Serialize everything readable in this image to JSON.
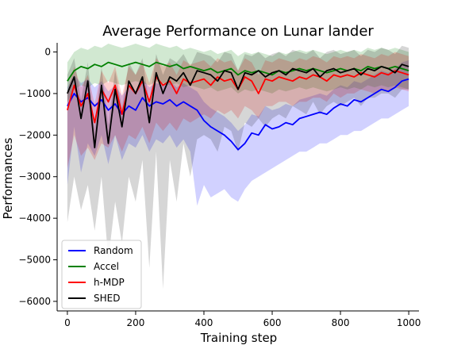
{
  "chart_data": {
    "type": "line",
    "title": "Average Performance on Lunar lander",
    "xlabel": "Training step",
    "ylabel": "Performances",
    "xlim": [
      -30,
      1030
    ],
    "ylim": [
      -6230,
      220
    ],
    "xticks": [
      0,
      200,
      400,
      600,
      800,
      1000
    ],
    "yticks": [
      0,
      -1000,
      -2000,
      -3000,
      -4000,
      -5000,
      -6000
    ],
    "ytick_labels": [
      "0",
      "−1000",
      "−2000",
      "−3000",
      "−4000",
      "−5000",
      "−6000"
    ],
    "grid": false,
    "legend_position": "lower-left",
    "series": [
      {
        "name": "Random",
        "color": "#0000ff",
        "x": [
          0,
          20,
          40,
          60,
          80,
          100,
          120,
          140,
          160,
          180,
          200,
          220,
          240,
          260,
          280,
          300,
          320,
          340,
          360,
          380,
          400,
          420,
          440,
          460,
          480,
          500,
          520,
          540,
          560,
          580,
          600,
          620,
          640,
          660,
          680,
          700,
          720,
          740,
          760,
          780,
          800,
          820,
          840,
          860,
          880,
          900,
          920,
          940,
          960,
          980,
          1000
        ],
        "y": [
          -1300,
          -1000,
          -1200,
          -1100,
          -1300,
          -1150,
          -1400,
          -1250,
          -1500,
          -1300,
          -1400,
          -1100,
          -1300,
          -1200,
          -1250,
          -1150,
          -1300,
          -1200,
          -1300,
          -1400,
          -1650,
          -1800,
          -1900,
          -2000,
          -2150,
          -2350,
          -2200,
          -1950,
          -2000,
          -1750,
          -1850,
          -1800,
          -1700,
          -1750,
          -1600,
          -1550,
          -1500,
          -1450,
          -1500,
          -1350,
          -1250,
          -1300,
          -1150,
          -1200,
          -1100,
          -1000,
          -900,
          -950,
          -850,
          -700,
          -650
        ],
        "band": [
          -3200,
          -1800,
          -2900,
          -2200,
          -2500,
          -2000,
          -2700,
          -2000,
          -2600,
          -2200,
          -2300,
          -2000,
          -2400,
          -2100,
          -2200,
          -2000,
          -2300,
          -2100,
          -2400,
          -3700,
          -3200,
          -3500,
          -3400,
          -3300,
          -3500,
          -3600,
          -3300,
          -3100,
          -3000,
          -2900,
          -2800,
          -2700,
          -2600,
          -2500,
          -2400,
          -2400,
          -2300,
          -2200,
          -2200,
          -2100,
          -2000,
          -2000,
          -1900,
          -1900,
          -1800,
          -1700,
          -1600,
          -1600,
          -1500,
          -1400,
          -1300
        ]
      },
      {
        "name": "Accel",
        "color": "#008000",
        "x": [
          0,
          20,
          40,
          60,
          80,
          100,
          120,
          140,
          160,
          180,
          200,
          220,
          240,
          260,
          280,
          300,
          320,
          340,
          360,
          380,
          400,
          420,
          440,
          460,
          480,
          500,
          520,
          540,
          560,
          580,
          600,
          620,
          640,
          660,
          680,
          700,
          720,
          740,
          760,
          780,
          800,
          820,
          840,
          860,
          880,
          900,
          920,
          940,
          960,
          980,
          1000
        ],
        "y": [
          -700,
          -450,
          -350,
          -400,
          -300,
          -350,
          -250,
          -300,
          -350,
          -300,
          -250,
          -300,
          -350,
          -250,
          -300,
          -350,
          -300,
          -400,
          -350,
          -400,
          -450,
          -400,
          -500,
          -450,
          -400,
          -550,
          -450,
          -500,
          -450,
          -500,
          -550,
          -450,
          -500,
          -450,
          -400,
          -450,
          -400,
          -450,
          -500,
          -450,
          -400,
          -450,
          -400,
          -450,
          -350,
          -400,
          -350,
          -400,
          -350,
          -400,
          -450
        ],
        "band": [
          -1200,
          -900,
          -800,
          -850,
          -750,
          -800,
          -700,
          -750,
          -800,
          -750,
          -700,
          -750,
          -800,
          -700,
          -750,
          -800,
          -750,
          -850,
          -800,
          -850,
          -900,
          -850,
          -950,
          -900,
          -850,
          -1000,
          -900,
          -950,
          -900,
          -950,
          -1000,
          -900,
          -950,
          -900,
          -850,
          -900,
          -850,
          -900,
          -950,
          -900,
          -850,
          -900,
          -850,
          -900,
          -800,
          -850,
          -800,
          -850,
          -800,
          -850,
          -900
        ]
      },
      {
        "name": "h-MDP",
        "color": "#ff0000",
        "x": [
          0,
          20,
          40,
          60,
          80,
          100,
          120,
          140,
          160,
          180,
          200,
          220,
          240,
          260,
          280,
          300,
          320,
          340,
          360,
          380,
          400,
          420,
          440,
          460,
          480,
          500,
          520,
          540,
          560,
          580,
          600,
          620,
          640,
          660,
          680,
          700,
          720,
          740,
          760,
          780,
          800,
          820,
          840,
          860,
          880,
          900,
          920,
          940,
          960,
          980,
          1000
        ],
        "y": [
          -1400,
          -800,
          -1300,
          -1000,
          -1700,
          -900,
          -1200,
          -800,
          -1500,
          -800,
          -1000,
          -700,
          -1200,
          -600,
          -800,
          -700,
          -1000,
          -650,
          -750,
          -700,
          -650,
          -800,
          -600,
          -700,
          -650,
          -900,
          -600,
          -700,
          -1000,
          -650,
          -700,
          -600,
          -650,
          -700,
          -600,
          -650,
          -550,
          -600,
          -700,
          -550,
          -600,
          -550,
          -600,
          -500,
          -550,
          -600,
          -500,
          -550,
          -450,
          -500,
          -550
        ],
        "band": [
          -2800,
          -2000,
          -2500,
          -2300,
          -2600,
          -2200,
          -2300,
          -2000,
          -2400,
          -2000,
          -2100,
          -1800,
          -2200,
          -1700,
          -1900,
          -1700,
          -1900,
          -1600,
          -1700,
          -1600,
          -1500,
          -1600,
          -1400,
          -1500,
          -1400,
          -1600,
          -1300,
          -1400,
          -1600,
          -1300,
          -1300,
          -1200,
          -1200,
          -1300,
          -1200,
          -1200,
          -1100,
          -1100,
          -1200,
          -1000,
          -1100,
          -1000,
          -1000,
          -900,
          -950,
          -1000,
          -900,
          -950,
          -850,
          -900,
          -950
        ]
      },
      {
        "name": "SHED",
        "color": "#000000",
        "x": [
          0,
          20,
          40,
          60,
          80,
          100,
          120,
          140,
          160,
          180,
          200,
          220,
          240,
          260,
          280,
          300,
          320,
          340,
          360,
          380,
          400,
          420,
          440,
          460,
          480,
          500,
          520,
          540,
          560,
          580,
          600,
          620,
          640,
          660,
          680,
          700,
          720,
          740,
          760,
          780,
          800,
          820,
          840,
          860,
          880,
          900,
          920,
          940,
          960,
          980,
          1000
        ],
        "y": [
          -1000,
          -600,
          -1600,
          -700,
          -2300,
          -800,
          -2200,
          -900,
          -1800,
          -700,
          -1000,
          -600,
          -1700,
          -500,
          -1000,
          -600,
          -700,
          -500,
          -800,
          -450,
          -500,
          -550,
          -700,
          -450,
          -500,
          -900,
          -500,
          -550,
          -450,
          -600,
          -500,
          -450,
          -550,
          -400,
          -450,
          -500,
          -400,
          -600,
          -450,
          -400,
          -500,
          -450,
          -400,
          -550,
          -400,
          -450,
          -350,
          -400,
          -500,
          -300,
          -350
        ],
        "band": [
          -4100,
          -3000,
          -3800,
          -3200,
          -4300,
          -3000,
          -5000,
          -3600,
          -4600,
          -3000,
          -3600,
          -2600,
          -5200,
          -2400,
          -5700,
          -2600,
          -3600,
          -2200,
          -3000,
          -2100,
          -2000,
          -2100,
          -2400,
          -1800,
          -1900,
          -2400,
          -1700,
          -1800,
          -1600,
          -1800,
          -1600,
          -1500,
          -1600,
          -1300,
          -1400,
          -1500,
          -1200,
          -1500,
          -1300,
          -1200,
          -1300,
          -1200,
          -1100,
          -1300,
          -1100,
          -1100,
          -1000,
          -1000,
          -1100,
          -900,
          -900
        ]
      }
    ]
  }
}
